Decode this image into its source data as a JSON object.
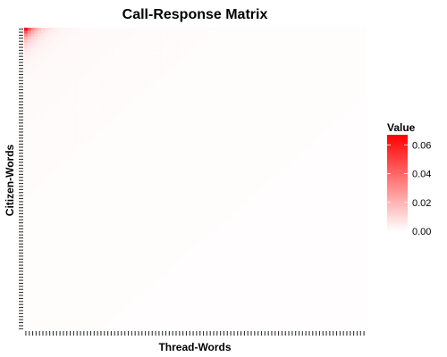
{
  "chart_data": {
    "type": "heatmap",
    "title": "Call-Response Matrix",
    "xlabel": "Thread-Words",
    "ylabel": "Citizen-Words",
    "x_tick_count": 100,
    "y_tick_count": 100,
    "x_tick_labels_shown": false,
    "y_tick_labels_shown": false,
    "peak_value": 0.065,
    "peak_location": "top-left",
    "grid": false,
    "legend": {
      "title": "Value",
      "placement": "right",
      "ticks": [
        "0.00",
        "0.02",
        "0.04",
        "0.06"
      ],
      "tick_values": [
        0,
        0.02,
        0.04,
        0.06
      ],
      "range": [
        0,
        0.067
      ]
    },
    "colors": {
      "low": "#ffffff",
      "high": "#ff0000"
    }
  }
}
